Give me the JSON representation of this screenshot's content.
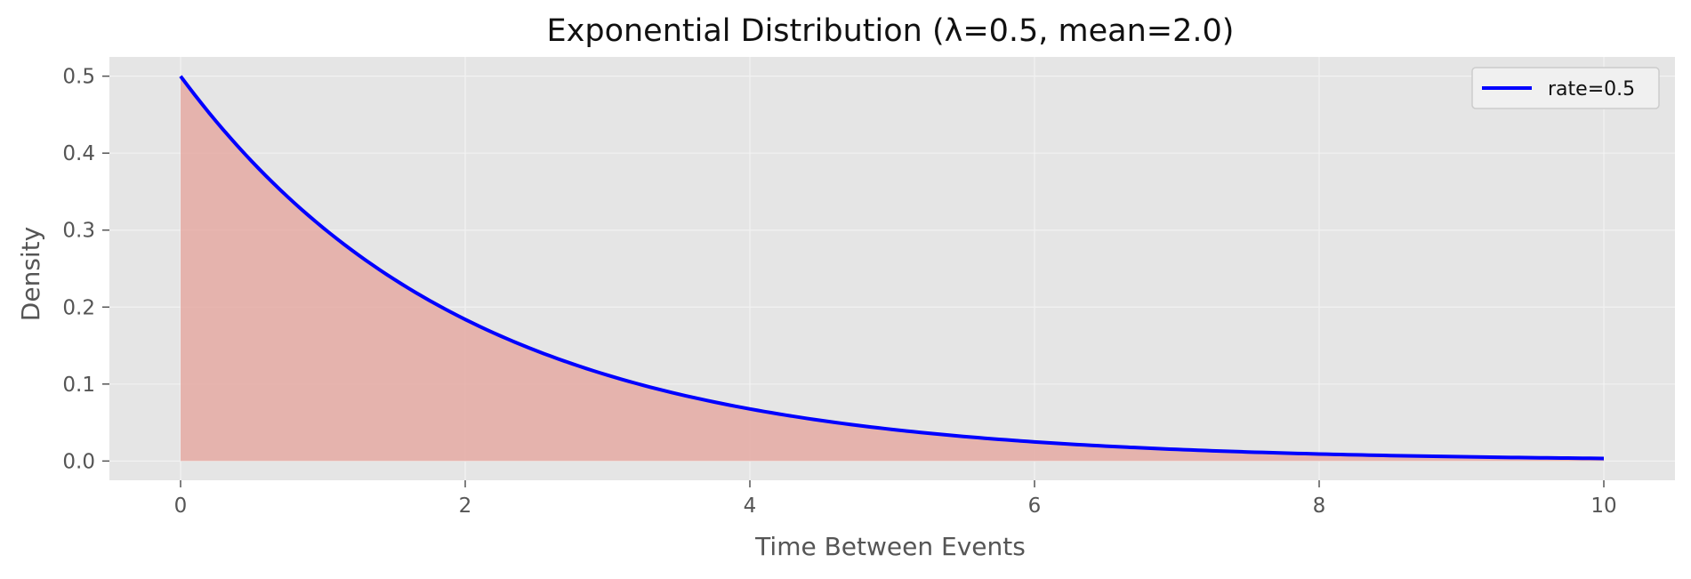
{
  "chart_data": {
    "type": "area",
    "title": "Exponential Distribution (λ=0.5, mean=2.0)",
    "xlabel": "Time Between Events",
    "ylabel": "Density",
    "xlim": [
      -0.5,
      10.5
    ],
    "ylim": [
      -0.025,
      0.525
    ],
    "xticks": [
      0,
      2,
      4,
      6,
      8,
      10
    ],
    "xtick_labels": [
      "0",
      "2",
      "4",
      "6",
      "8",
      "10"
    ],
    "yticks": [
      0.0,
      0.1,
      0.2,
      0.3,
      0.4,
      0.5
    ],
    "ytick_labels": [
      "0.0",
      "0.1",
      "0.2",
      "0.3",
      "0.4",
      "0.5"
    ],
    "grid": true,
    "legend_position": "top-right",
    "series": [
      {
        "name": "rate=0.5",
        "color": "#0000ff",
        "fill_color": "#e4a19a",
        "x": [
          0,
          0.25,
          0.5,
          0.75,
          1,
          1.25,
          1.5,
          1.75,
          2,
          2.5,
          3,
          3.5,
          4,
          4.5,
          5,
          5.5,
          6,
          6.5,
          7,
          7.5,
          8,
          8.5,
          9,
          9.5,
          10
        ],
        "y": [
          0.5,
          0.441,
          0.389,
          0.344,
          0.303,
          0.268,
          0.236,
          0.208,
          0.184,
          0.143,
          0.112,
          0.087,
          0.068,
          0.053,
          0.041,
          0.032,
          0.025,
          0.019,
          0.015,
          0.012,
          0.009,
          0.007,
          0.006,
          0.004,
          0.003
        ]
      }
    ]
  }
}
